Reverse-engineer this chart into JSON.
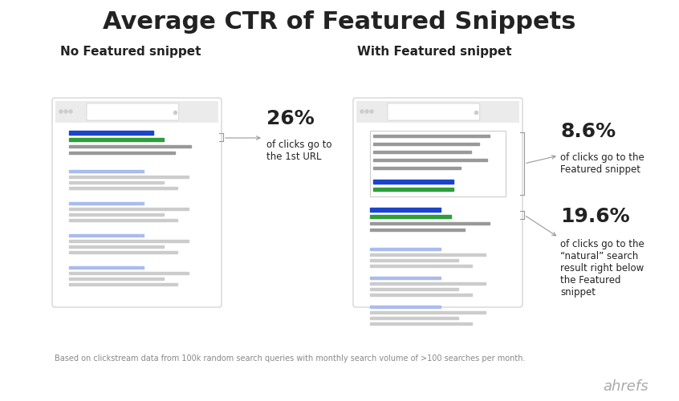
{
  "title": "Average CTR of Featured Snippets",
  "title_fontsize": 22,
  "title_fontweight": "bold",
  "bg_color": "#ffffff",
  "left_label": "No Featured snippet",
  "right_label": "With Featured snippet",
  "label_fontsize": 11,
  "pct_26": "26%",
  "desc_26": "of clicks go to\nthe 1st URL",
  "pct_86": "8.6%",
  "desc_86": "of clicks go to the\nFeatured snippet",
  "pct_196": "19.6%",
  "desc_196": "of clicks go to the\n“natural” search\nresult right below\nthe Featured\nsnippet",
  "footnote": "Based on clickstream data from 100k random search queries with monthly search volume of >100 searches per month.",
  "ahrefs_text": "ahrefs",
  "gray_line_color": "#cccccc",
  "dark_gray_line": "#999999",
  "blue_color": "#1a44cc",
  "green_color": "#2d9e3a",
  "text_color": "#222222",
  "light_gray": "#ebebeb",
  "border_color": "#cccccc",
  "footnote_color": "#888888",
  "ahrefs_color": "#aaaaaa"
}
